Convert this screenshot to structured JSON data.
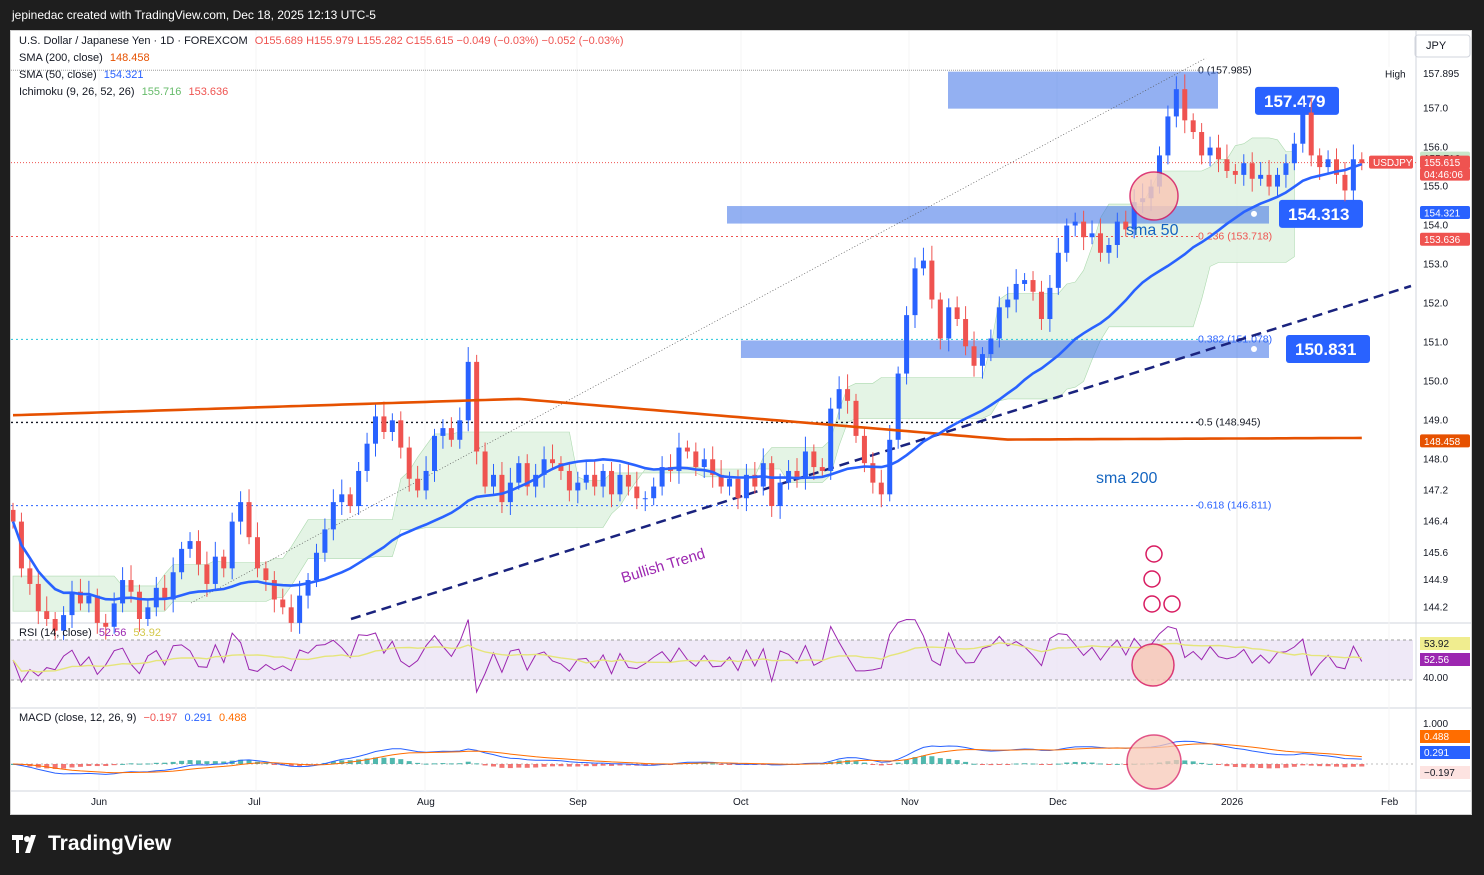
{
  "header": {
    "text": "jepinedac created with TradingView.com, Dec 18, 2025 12:13 UTC-5"
  },
  "footer": {
    "logo_text": "TradingView"
  },
  "legend": {
    "title": "U.S. Dollar / Japanese Yen · 1D · FOREXCOM",
    "ohlc": "O155.689  H155.979  L155.282  C155.615  −0.049 (−0.03%)  −0.052 (−0.03%)",
    "sma200_label": "SMA (200, close)",
    "sma200_value": "148.458",
    "sma50_label": "SMA (50, close)",
    "sma50_value": "154.321",
    "ichimoku_label": "Ichimoku (9, 26, 52, 26)",
    "ichimoku_v1": "155.716",
    "ichimoku_v2": "153.636",
    "rsi_label": "RSI (14, close)",
    "rsi_v1": "52.56",
    "rsi_v2": "53.92",
    "macd_label": "MACD (close, 12, 26, 9)",
    "macd_v1": "−0.197",
    "macd_v2": "0.291",
    "macd_v3": "0.488"
  },
  "currency": "JPY",
  "colors": {
    "up": "#2962ff",
    "down": "#ef5350",
    "sma50": "#2962ff",
    "sma200": "#e65100",
    "zone": "#3b6fe8",
    "cloud_green": "#e2f3e3",
    "cloud_red": "#fde3e1",
    "rsi": "#9c27b0",
    "rsi_ma": "#e5e57a",
    "macd": "#2962ff",
    "signal": "#ff6d00",
    "circle_fill": "#f8c9b8",
    "circle_stroke": "#d81b60",
    "annotation": "#9c27b0",
    "fib": "#2962ff"
  },
  "chart_data": [
    {
      "type": "candlestick",
      "title": "U.S. Dollar / Japanese Yen · 1D · FOREXCOM",
      "symbol": "USDJPY",
      "x_ticks": [
        "Jun",
        "Jul",
        "Aug",
        "Sep",
        "Oct",
        "Nov",
        "Dec",
        "2026",
        "Feb"
      ],
      "y_ticks": [
        144.2,
        144.9,
        145.6,
        146.4,
        147.2,
        148.0,
        149.0,
        150.0,
        151.0,
        152.0,
        153.0,
        154.0,
        155.0,
        156.0,
        157.0,
        157.895
      ],
      "ylim": [
        143.9,
        158.3
      ],
      "price_labels": [
        {
          "text": "High",
          "value": "157.895"
        },
        {
          "text": "155.716",
          "value": 155.716
        },
        {
          "text": "USDJPY",
          "value": 155.615
        },
        {
          "text": "155.615",
          "value": 155.615
        },
        {
          "text": "04:46:06",
          "value": 155.615
        },
        {
          "text": "154.321",
          "value": 154.321
        },
        {
          "text": "153.636",
          "value": 153.636
        },
        {
          "text": "148.458",
          "value": 148.458
        }
      ],
      "fib_levels": [
        {
          "label": "0 (157.985)",
          "value": 157.985
        },
        {
          "label": "0.236 (153.718)",
          "value": 153.718
        },
        {
          "label": "0.382 (151.078)",
          "value": 151.078
        },
        {
          "label": "0.5 (148.945)",
          "value": 148.945
        },
        {
          "label": "0.618 (146.811)",
          "value": 146.811
        }
      ],
      "zones": [
        {
          "label": "157.479",
          "top": 157.95,
          "bottom": 157.0
        },
        {
          "label": "154.313",
          "top": 154.5,
          "bottom": 154.05
        },
        {
          "label": "150.831",
          "top": 151.05,
          "bottom": 150.6
        }
      ],
      "annotations": {
        "trend": "Bullish Trend",
        "sma50": "sma 50",
        "sma200": "sma 200"
      },
      "closes": [
        146.4,
        145.2,
        144.8,
        144.1,
        143.9,
        143.6,
        144.0,
        144.6,
        144.3,
        144.5,
        143.8,
        143.7,
        144.3,
        144.9,
        144.6,
        143.9,
        144.2,
        144.7,
        144.4,
        145.1,
        145.7,
        145.9,
        145.3,
        144.8,
        145.5,
        145.2,
        146.4,
        146.9,
        146.0,
        145.2,
        144.9,
        144.4,
        144.2,
        143.8,
        144.5,
        144.9,
        145.6,
        146.2,
        146.9,
        147.1,
        146.8,
        147.7,
        148.4,
        149.1,
        148.7,
        149.0,
        148.3,
        147.5,
        147.2,
        147.7,
        148.6,
        148.8,
        148.5,
        149.0,
        150.5,
        148.2,
        147.3,
        147.6,
        146.9,
        147.4,
        147.9,
        147.3,
        147.6,
        148.0,
        147.9,
        147.7,
        147.2,
        147.4,
        147.6,
        147.3,
        147.7,
        147.1,
        147.6,
        147.3,
        147.0,
        147.0,
        147.3,
        147.8,
        147.7,
        148.3,
        148.2,
        147.8,
        148.0,
        147.6,
        147.3,
        147.5,
        147.0,
        147.6,
        147.3,
        147.9,
        146.8,
        147.4,
        147.7,
        147.5,
        148.2,
        147.8,
        147.7,
        149.3,
        149.8,
        149.5,
        148.6,
        147.9,
        147.4,
        147.1,
        148.5,
        150.2,
        151.7,
        152.9,
        153.1,
        152.1,
        151.1,
        151.9,
        151.6,
        150.9,
        150.4,
        150.7,
        151.1,
        151.9,
        152.1,
        152.5,
        152.6,
        152.3,
        151.6,
        152.4,
        153.3,
        154.0,
        154.1,
        153.7,
        153.8,
        153.3,
        153.5,
        154.1,
        153.9,
        154.6,
        154.7,
        155.0,
        155.8,
        156.8,
        157.5,
        156.7,
        156.4,
        155.8,
        156.0,
        155.7,
        155.4,
        155.3,
        155.6,
        155.2,
        155.3,
        155.0,
        155.3,
        155.6,
        156.1,
        156.9,
        155.8,
        155.5,
        155.7,
        155.3,
        154.9,
        155.7,
        155.6
      ]
    },
    {
      "type": "line",
      "title": "RSI (14, close)",
      "y_ticks": [
        40.0
      ],
      "series": [
        {
          "name": "RSI",
          "last": 52.56
        },
        {
          "name": "RSI MA",
          "last": 53.92
        }
      ]
    },
    {
      "type": "bar",
      "title": "MACD (close, 12, 26, 9)",
      "y_ticks": [
        1.0
      ],
      "series": [
        {
          "name": "Histogram",
          "last": -0.197
        },
        {
          "name": "MACD",
          "last": 0.291
        },
        {
          "name": "Signal",
          "last": 0.488
        }
      ]
    }
  ]
}
